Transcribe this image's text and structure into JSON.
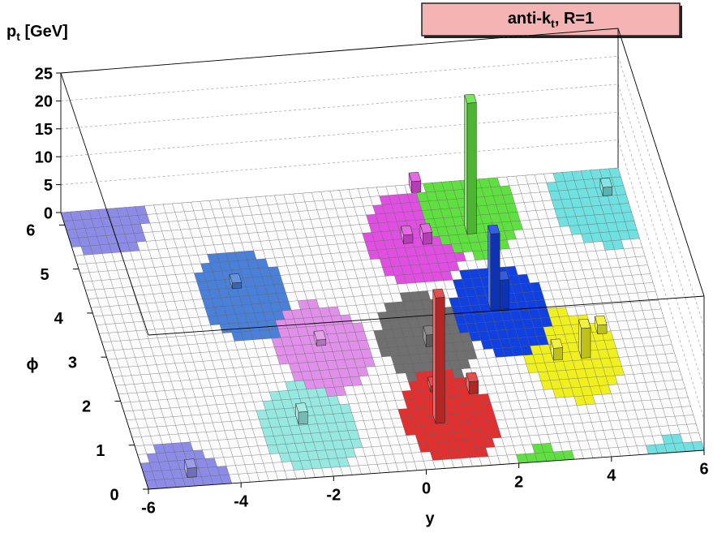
{
  "chart_data": {
    "type": "lego",
    "title_parts": [
      "anti-k",
      "t",
      ", R=1"
    ],
    "zlabel_parts": [
      "p",
      "t",
      " [GeV]"
    ],
    "xlabel": "y",
    "ylabel": "ϕ",
    "jet_radius": 1,
    "xlim": [
      -6,
      6
    ],
    "xticks": [
      -6,
      -4,
      -2,
      0,
      2,
      4,
      6
    ],
    "ylim": [
      0,
      6.283
    ],
    "yticks": [
      0,
      1,
      2,
      3,
      4,
      5,
      6
    ],
    "zlim": [
      0,
      25
    ],
    "zticks": [
      0,
      5,
      10,
      15,
      20,
      25
    ],
    "grid": true,
    "title_color": "#f4b4b4",
    "jets": [
      {
        "y": -5.2,
        "phi": 6.25,
        "color": "#8c8ce6"
      },
      {
        "y": -2.7,
        "phi": 4.1,
        "color": "#4a80d8"
      },
      {
        "y": -2.2,
        "phi": 1.1,
        "color": "#96e8e0"
      },
      {
        "y": -1.35,
        "phi": 2.85,
        "color": "#e090e8"
      },
      {
        "y": 5.4,
        "phi": 5.6,
        "color": "#70e0e0"
      },
      {
        "y": 0.84,
        "phi": 2.87,
        "color": "#707070"
      },
      {
        "y": 3.84,
        "phi": 2.26,
        "color": "#f0f020"
      },
      {
        "y": 1.24,
        "phi": 5.05,
        "color": "#e050e0"
      },
      {
        "y": 0.84,
        "phi": 1.13,
        "color": "#e03030"
      },
      {
        "y": 2.64,
        "phi": 3.38,
        "color": "#1040e0"
      },
      {
        "y": 2.6,
        "phi": 5.6,
        "color": "#60e040"
      }
    ],
    "towers": [
      {
        "y": 2.4,
        "phi": 5.1,
        "pt": 23,
        "color": "#60e040"
      },
      {
        "y": 0.5,
        "phi": 1.0,
        "pt": 20.7,
        "color": "#e03030"
      },
      {
        "y": 2.4,
        "phi": 3.4,
        "pt": 13,
        "color": "#1040e0"
      },
      {
        "y": 2.6,
        "phi": 3.4,
        "pt": 5,
        "color": "#1040e0"
      },
      {
        "y": 1.5,
        "phi": 6.1,
        "pt": 2,
        "color": "#e050e0"
      },
      {
        "y": 1.4,
        "phi": 4.95,
        "pt": 2,
        "color": "#e050e0"
      },
      {
        "y": 1.0,
        "phi": 5.0,
        "pt": 1.5,
        "color": "#e050e0"
      },
      {
        "y": 0.8,
        "phi": 2.7,
        "pt": 2,
        "color": "#707070"
      },
      {
        "y": 1.4,
        "phi": 1.6,
        "pt": 2,
        "color": "#e03030"
      },
      {
        "y": 0.6,
        "phi": 1.7,
        "pt": 1,
        "color": "#e03030"
      },
      {
        "y": 4.0,
        "phi": 2.2,
        "pt": 5,
        "color": "#f0f020"
      },
      {
        "y": 3.4,
        "phi": 2.2,
        "pt": 2,
        "color": "#f0f020"
      },
      {
        "y": 4.5,
        "phi": 2.7,
        "pt": 1.5,
        "color": "#f0f020"
      },
      {
        "y": -2.4,
        "phi": 1.2,
        "pt": 2,
        "color": "#96e8e0"
      },
      {
        "y": -1.5,
        "phi": 2.9,
        "pt": 1,
        "color": "#e090e8"
      },
      {
        "y": -2.9,
        "phi": 4.3,
        "pt": 1,
        "color": "#4a80d8"
      },
      {
        "y": -5.1,
        "phi": 0.2,
        "pt": 1.5,
        "color": "#8c8ce6"
      },
      {
        "y": 5.5,
        "phi": 5.7,
        "pt": 1.5,
        "color": "#70e0e0"
      }
    ]
  }
}
